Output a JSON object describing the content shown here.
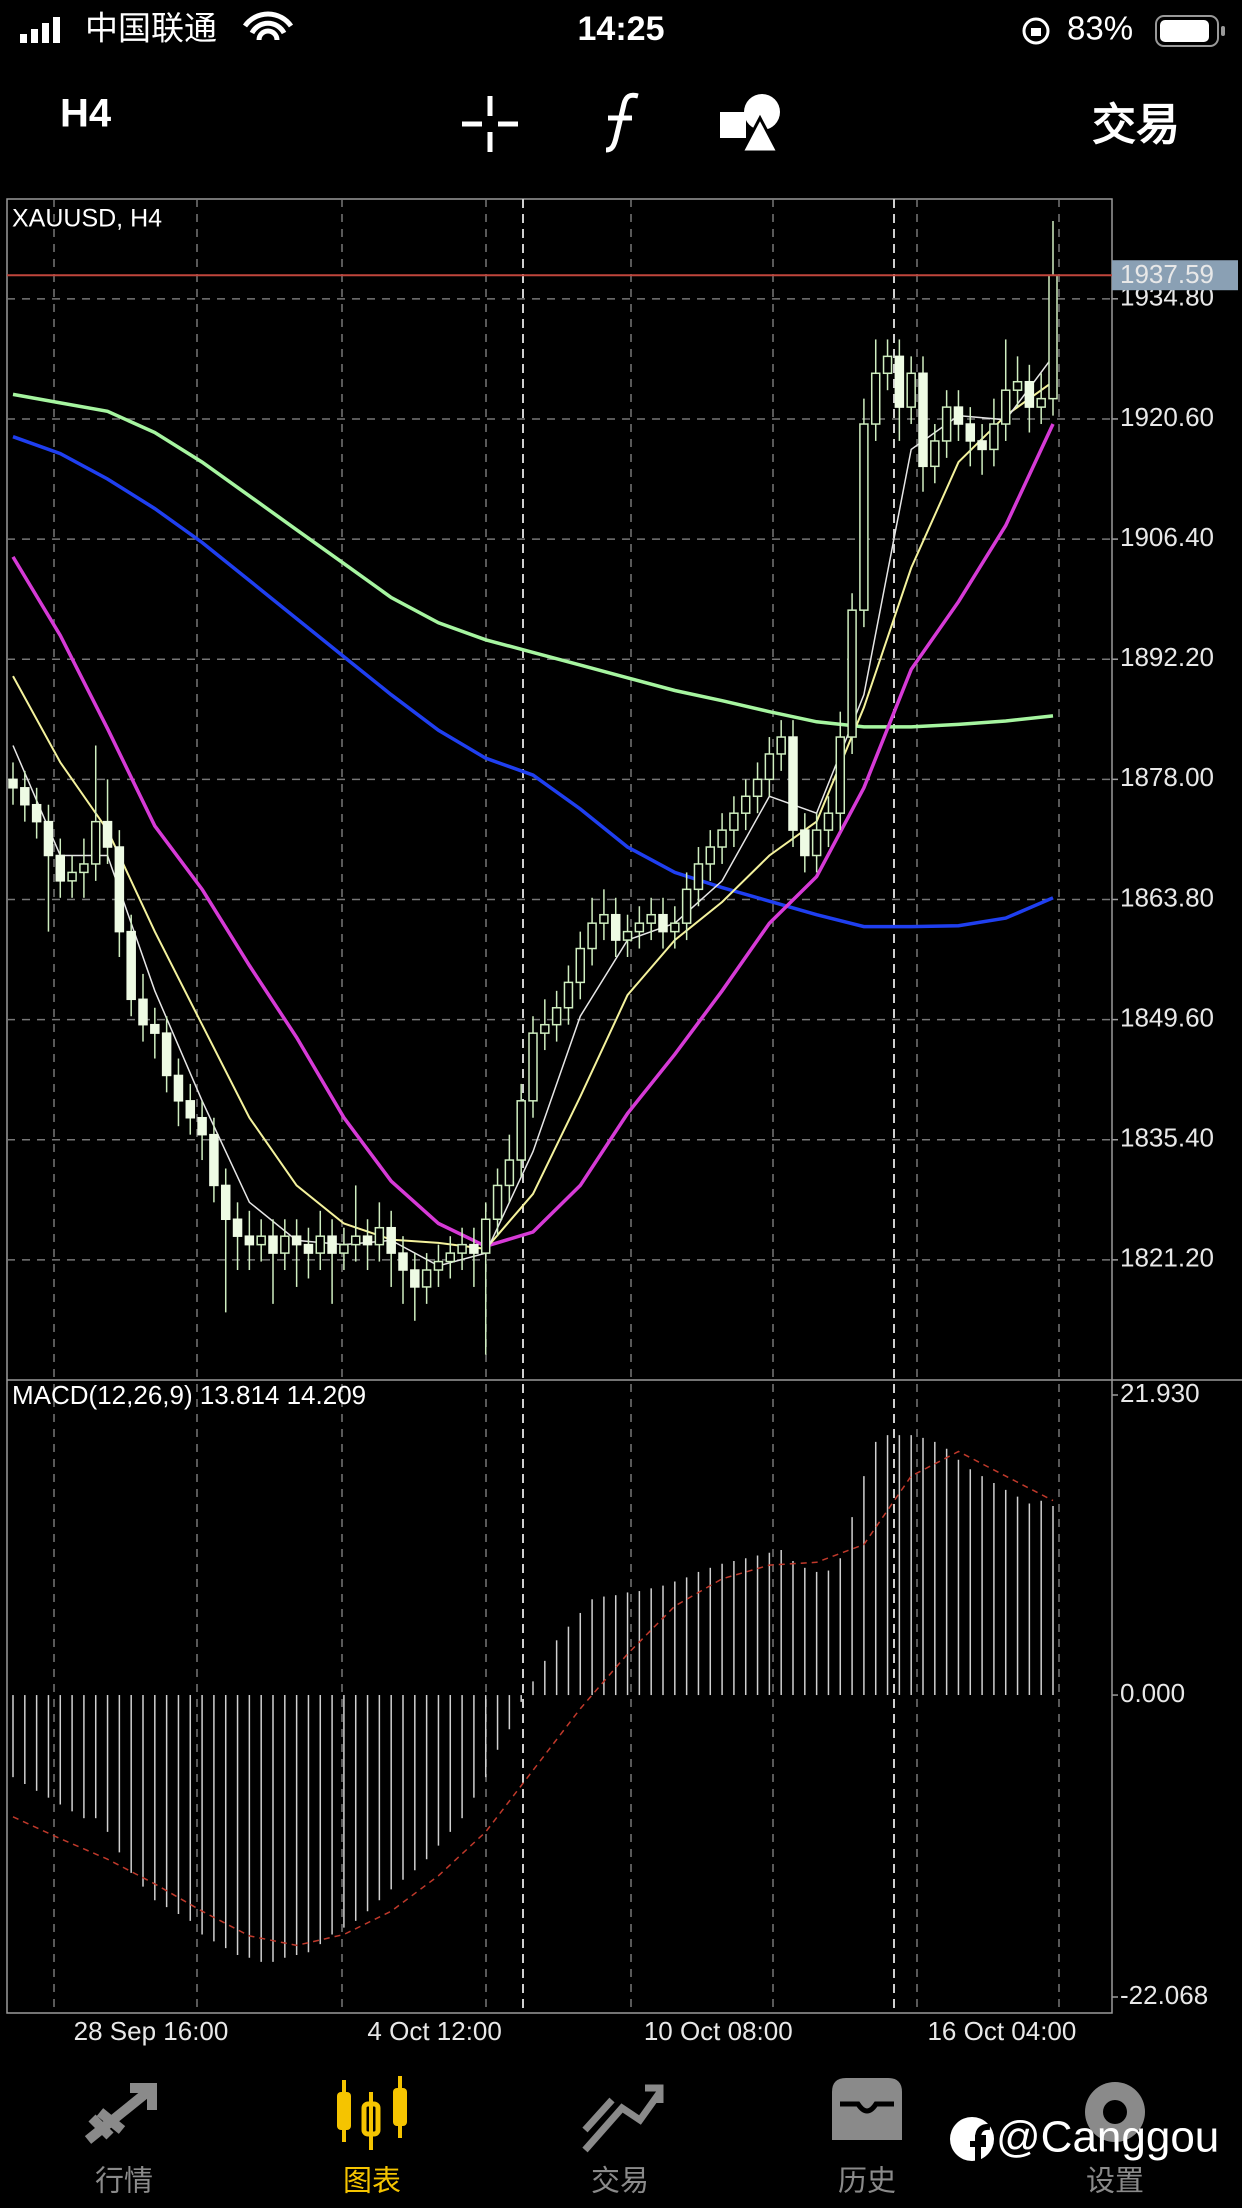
{
  "status_bar": {
    "carrier": "中国联通",
    "time": "14:25",
    "battery": "83%"
  },
  "toolbar": {
    "timeframe": "H4",
    "trade": "交易"
  },
  "chart_data": [
    {
      "type": "candlestick",
      "title": "XAUUSD, H4",
      "categories": [
        null,
        null,
        null,
        null,
        null,
        null,
        null,
        null,
        null,
        null,
        null,
        "28 Sep 16:00",
        null,
        null,
        null,
        null,
        null,
        null,
        null,
        null,
        null,
        null,
        null,
        null,
        null,
        null,
        null,
        null,
        null,
        null,
        null,
        null,
        null,
        null,
        null,
        "4 Oct 12:00",
        null,
        null,
        null,
        null,
        null,
        null,
        null,
        null,
        null,
        null,
        null,
        null,
        null,
        null,
        null,
        null,
        null,
        null,
        null,
        null,
        null,
        null,
        null,
        "10 Oct 08:00",
        null,
        null,
        null,
        null,
        null,
        null,
        null,
        null,
        null,
        null,
        null,
        null,
        null,
        null,
        null,
        null,
        null,
        null,
        null,
        null,
        null,
        null,
        null,
        "16 Oct 04:00",
        null,
        null,
        null,
        null,
        null
      ],
      "ohlc": [
        [
          1878,
          1880,
          1875,
          1877
        ],
        [
          1877,
          1879,
          1873,
          1875
        ],
        [
          1875,
          1877,
          1871,
          1873
        ],
        [
          1873,
          1875,
          1860,
          1869
        ],
        [
          1869,
          1871,
          1864,
          1866
        ],
        [
          1866,
          1869,
          1864,
          1867
        ],
        [
          1867,
          1871,
          1864,
          1868
        ],
        [
          1868,
          1882,
          1866,
          1873
        ],
        [
          1873,
          1878,
          1868,
          1870
        ],
        [
          1870,
          1872,
          1857,
          1860
        ],
        [
          1860,
          1862,
          1850,
          1852
        ],
        [
          1852,
          1855,
          1847,
          1849
        ],
        [
          1849,
          1851,
          1845,
          1848
        ],
        [
          1848,
          1850,
          1841,
          1843
        ],
        [
          1843,
          1845,
          1837,
          1840
        ],
        [
          1840,
          1842,
          1836,
          1838
        ],
        [
          1838,
          1840,
          1833,
          1836
        ],
        [
          1836,
          1838,
          1828,
          1830
        ],
        [
          1830,
          1832,
          1815,
          1826
        ],
        [
          1826,
          1828,
          1820,
          1824
        ],
        [
          1824,
          1827,
          1820,
          1823
        ],
        [
          1823,
          1826,
          1821,
          1824
        ],
        [
          1824,
          1826,
          1816,
          1822
        ],
        [
          1822,
          1826,
          1820,
          1824
        ],
        [
          1824,
          1826,
          1818,
          1823
        ],
        [
          1823,
          1825,
          1819,
          1822
        ],
        [
          1822,
          1827,
          1820,
          1824
        ],
        [
          1824,
          1826,
          1816,
          1822
        ],
        [
          1822,
          1825,
          1820,
          1823
        ],
        [
          1823,
          1830,
          1821,
          1824
        ],
        [
          1824,
          1826,
          1820,
          1823
        ],
        [
          1823,
          1828,
          1821,
          1825
        ],
        [
          1825,
          1827,
          1818,
          1822
        ],
        [
          1822,
          1824,
          1816,
          1820
        ],
        [
          1820,
          1822,
          1814,
          1818
        ],
        [
          1818,
          1822,
          1816,
          1820
        ],
        [
          1820,
          1823,
          1818,
          1821
        ],
        [
          1821,
          1824,
          1819,
          1822
        ],
        [
          1822,
          1825,
          1820,
          1823
        ],
        [
          1823,
          1825,
          1818,
          1822
        ],
        [
          1822,
          1828,
          1810,
          1826
        ],
        [
          1826,
          1832,
          1824,
          1830
        ],
        [
          1830,
          1836,
          1828,
          1833
        ],
        [
          1833,
          1842,
          1831,
          1840
        ],
        [
          1840,
          1850,
          1838,
          1848
        ],
        [
          1848,
          1852,
          1846,
          1849
        ],
        [
          1849,
          1853,
          1847,
          1851
        ],
        [
          1851,
          1856,
          1849,
          1854
        ],
        [
          1854,
          1860,
          1852,
          1858
        ],
        [
          1858,
          1864,
          1856,
          1861
        ],
        [
          1861,
          1865,
          1859,
          1862
        ],
        [
          1862,
          1864,
          1857,
          1859
        ],
        [
          1859,
          1862,
          1857,
          1860
        ],
        [
          1860,
          1863,
          1858,
          1861
        ],
        [
          1861,
          1864,
          1859,
          1862
        ],
        [
          1862,
          1864,
          1858,
          1860
        ],
        [
          1860,
          1863,
          1858,
          1861
        ],
        [
          1861,
          1867,
          1859,
          1865
        ],
        [
          1865,
          1870,
          1863,
          1868
        ],
        [
          1868,
          1872,
          1866,
          1870
        ],
        [
          1870,
          1874,
          1868,
          1872
        ],
        [
          1872,
          1876,
          1870,
          1874
        ],
        [
          1874,
          1878,
          1872,
          1876
        ],
        [
          1876,
          1880,
          1874,
          1878
        ],
        [
          1878,
          1883,
          1876,
          1881
        ],
        [
          1881,
          1885,
          1879,
          1883
        ],
        [
          1883,
          1885,
          1870,
          1872
        ],
        [
          1872,
          1874,
          1867,
          1869
        ],
        [
          1869,
          1874,
          1867,
          1872
        ],
        [
          1872,
          1876,
          1870,
          1874
        ],
        [
          1874,
          1886,
          1872,
          1883
        ],
        [
          1883,
          1900,
          1881,
          1898
        ],
        [
          1898,
          1923,
          1896,
          1920
        ],
        [
          1920,
          1930,
          1918,
          1926
        ],
        [
          1926,
          1930,
          1924,
          1928
        ],
        [
          1928,
          1930,
          1918,
          1922
        ],
        [
          1922,
          1928,
          1920,
          1926
        ],
        [
          1926,
          1928,
          1912,
          1915
        ],
        [
          1915,
          1920,
          1913,
          1918
        ],
        [
          1918,
          1924,
          1916,
          1922
        ],
        [
          1922,
          1924,
          1918,
          1920
        ],
        [
          1920,
          1922,
          1915,
          1918
        ],
        [
          1918,
          1920,
          1914,
          1917
        ],
        [
          1917,
          1923,
          1915,
          1920
        ],
        [
          1920,
          1930,
          1918,
          1924
        ],
        [
          1924,
          1928,
          1922,
          1925
        ],
        [
          1925,
          1927,
          1919,
          1922
        ],
        [
          1922,
          1926,
          1920,
          1923
        ],
        [
          1923,
          1944,
          1921,
          1937.59
        ]
      ],
      "up_color": "#cfeec0",
      "down_color": "#eefbe4",
      "lines": [
        {
          "color": "#a6f5a0",
          "x": [
            0,
            4,
            8,
            12,
            16,
            20,
            24,
            28,
            32,
            36,
            40,
            44,
            48,
            52,
            56,
            60,
            64,
            68,
            72,
            76,
            80,
            84,
            88
          ],
          "values": [
            1923.5,
            1922.5,
            1921.5,
            1919,
            1915.5,
            1911.5,
            1907.5,
            1903.5,
            1899.5,
            1896.5,
            1894.5,
            1893,
            1891.5,
            1890,
            1888.5,
            1887.3,
            1886,
            1884.8,
            1884.2,
            1884.2,
            1884.5,
            1884.9,
            1885.5
          ]
        },
        {
          "color": "#1f3ff0",
          "x": [
            0,
            4,
            8,
            12,
            16,
            20,
            24,
            28,
            32,
            36,
            40,
            44,
            48,
            52,
            56,
            60,
            64,
            68,
            72,
            76,
            80,
            84,
            88
          ],
          "values": [
            1918.5,
            1916.5,
            1913.5,
            1910,
            1906,
            1901.5,
            1897,
            1892.5,
            1888,
            1883.8,
            1880.5,
            1878.5,
            1874.5,
            1870,
            1867,
            1865.2,
            1863.6,
            1862,
            1860.6,
            1860.6,
            1860.7,
            1861.6,
            1864
          ]
        },
        {
          "color": "#d63ad6",
          "x": [
            0,
            4,
            8,
            12,
            16,
            20,
            24,
            28,
            32,
            36,
            40,
            44,
            48,
            52,
            56,
            60,
            64,
            68,
            72,
            76,
            80,
            84,
            88
          ],
          "values": [
            1904.3,
            1895,
            1884,
            1872.5,
            1865,
            1856,
            1847.5,
            1838,
            1830.5,
            1825.5,
            1822.8,
            1824.5,
            1830,
            1838.5,
            1845.5,
            1853,
            1861,
            1866.5,
            1877,
            1891,
            1899,
            1908,
            1920
          ]
        },
        {
          "color": "#f4f29c",
          "x": [
            0,
            4,
            8,
            12,
            16,
            20,
            24,
            28,
            32,
            36,
            40,
            44,
            48,
            52,
            56,
            60,
            64,
            68,
            72,
            76,
            80,
            84,
            88
          ],
          "values": [
            1890.2,
            1880,
            1872,
            1860,
            1849,
            1838,
            1830,
            1825.5,
            1823.6,
            1823.2,
            1822.5,
            1829,
            1840.5,
            1852.5,
            1859,
            1863.5,
            1869,
            1873,
            1886.5,
            1903,
            1915.5,
            1921,
            1925
          ]
        },
        {
          "color": "#e6e6e6",
          "x": [
            0,
            4,
            8,
            12,
            16,
            20,
            24,
            28,
            32,
            36,
            40,
            44,
            48,
            52,
            56,
            60,
            64,
            68,
            72,
            76,
            80,
            84,
            88
          ],
          "values": [
            1882,
            1869,
            1869,
            1853,
            1840,
            1828,
            1823.5,
            1823,
            1823.5,
            1820.5,
            1822,
            1834,
            1850,
            1859,
            1861,
            1866,
            1876,
            1874,
            1888,
            1917,
            1921,
            1920.5,
            1928
          ]
        }
      ],
      "current_price": 1937.59,
      "current_price_color": "#c0463c",
      "ylim": [
        1807,
        1946.6
      ],
      "yticks": [
        {
          "value": 1821.2,
          "label": "1821.20"
        },
        {
          "value": 1835.4,
          "label": "1835.40"
        },
        {
          "value": 1849.6,
          "label": "1849.60"
        },
        {
          "value": 1863.8,
          "label": "1863.80"
        },
        {
          "value": 1878,
          "label": "1878.00"
        },
        {
          "value": 1892.2,
          "label": "1892.20"
        },
        {
          "value": 1906.4,
          "label": "1906.40"
        },
        {
          "value": 1920.6,
          "label": "1920.60"
        },
        {
          "value": 1934.8,
          "label": "1934.80"
        }
      ],
      "grid": true
    },
    {
      "type": "macd",
      "title": "MACD(12,26,9) 13.814 14.209",
      "color": "#d0d0d0",
      "values": [
        -6,
        -6.5,
        -7,
        -7.5,
        -8,
        -8.5,
        -9,
        -9,
        -10,
        -11.5,
        -13,
        -14,
        -15,
        -15.5,
        -16,
        -16.5,
        -17.5,
        -18,
        -18.5,
        -19,
        -19.2,
        -19.5,
        -19.5,
        -19.2,
        -19,
        -18.8,
        -18.2,
        -17.5,
        -17,
        -16.5,
        -15.8,
        -15,
        -14.2,
        -13.5,
        -12.8,
        -12,
        -11,
        -10,
        -9,
        -7.5,
        -6,
        -4,
        -2.5,
        -0.5,
        1,
        2.5,
        4,
        5,
        6,
        7,
        7.2,
        7.3,
        7.5,
        7.6,
        7.8,
        8,
        8.3,
        8.6,
        9,
        9.3,
        9.6,
        9.8,
        10,
        10.2,
        10.4,
        10.6,
        9.8,
        9.3,
        9,
        9.1,
        10,
        13,
        16,
        18.5,
        19,
        19,
        19,
        18.8,
        18.5,
        18,
        17.2,
        16.5,
        16,
        15.5,
        15,
        14.5,
        14,
        14.2,
        13.814
      ],
      "signal": {
        "color": "#c0392b",
        "x": [
          0,
          4,
          8,
          12,
          16,
          20,
          24,
          28,
          32,
          36,
          40,
          44,
          48,
          52,
          56,
          60,
          64,
          68,
          72,
          76,
          80,
          84,
          88
        ],
        "values": [
          -8.9,
          -10.5,
          -12,
          -13.8,
          -15.8,
          -17.6,
          -18.3,
          -17.5,
          -15.8,
          -13.2,
          -10,
          -5.5,
          -1,
          3,
          6.5,
          8.5,
          9.5,
          9.7,
          11,
          16,
          17.8,
          16,
          14.209
        ]
      },
      "ylim": [
        -22.068,
        21.93
      ],
      "yticks": [
        {
          "value": 21.93,
          "label": "21.930"
        },
        {
          "value": 0,
          "label": "0.000"
        },
        -22.068
      ]
    }
  ],
  "nav": {
    "items": [
      "行情",
      "图表",
      "交易",
      "历史",
      "设置"
    ],
    "active": 1,
    "active_color": "#f5c400"
  },
  "watermark": "@Canggou"
}
